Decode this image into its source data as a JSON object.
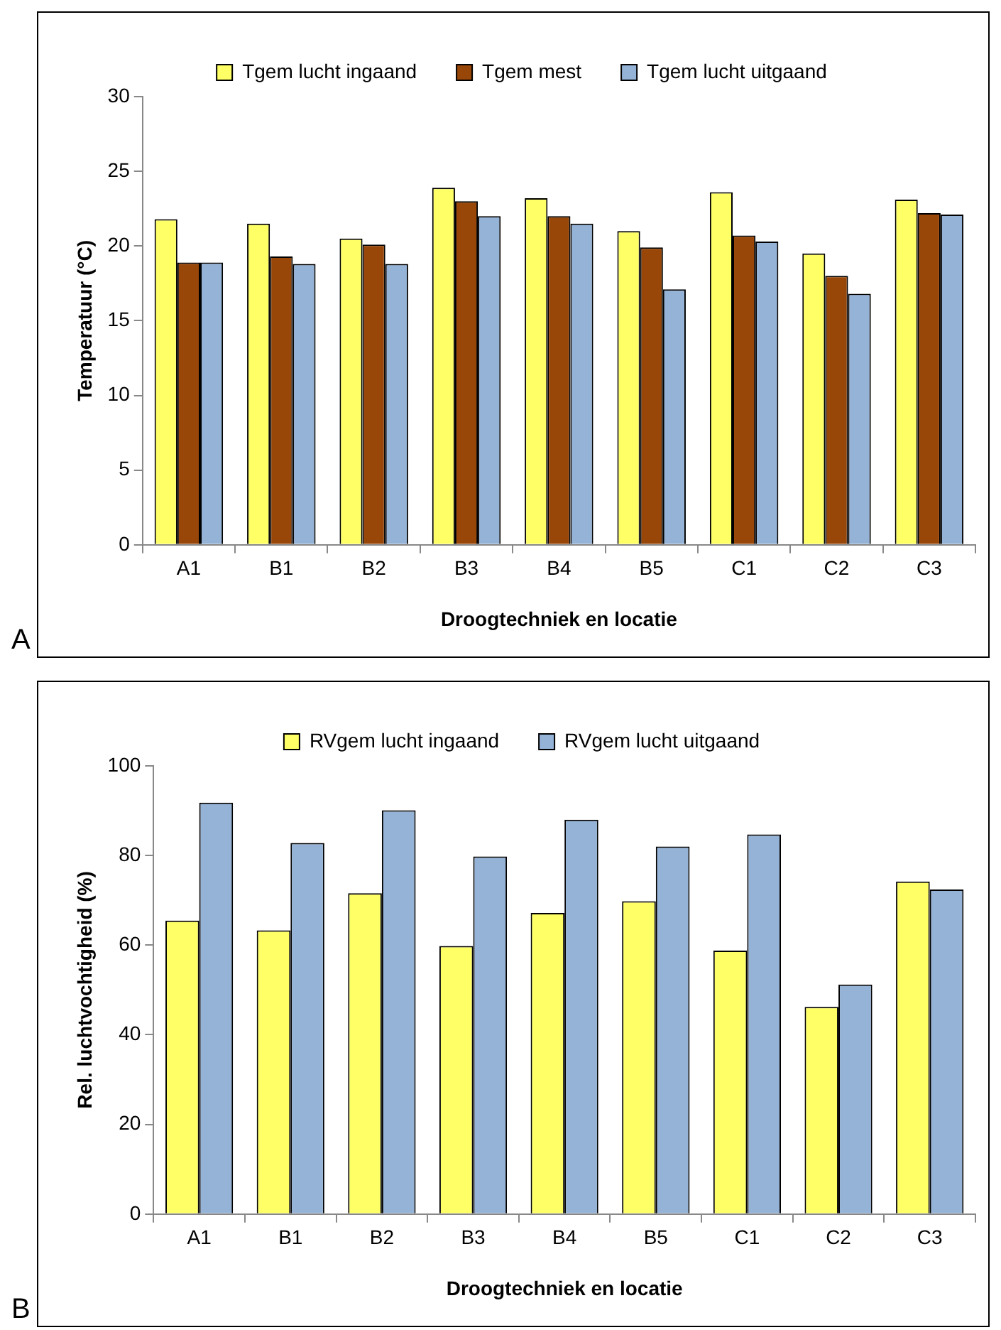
{
  "chart_data": [
    {
      "type": "bar",
      "xlabel": "Droogtechniek en locatie",
      "ylabel": "Temperatuur (°C)",
      "categories": [
        "A1",
        "B1",
        "B2",
        "B3",
        "B4",
        "B5",
        "C1",
        "C2",
        "C3"
      ],
      "series": [
        {
          "name": "Tgem lucht ingaand",
          "color": "#ffff66",
          "values": [
            21.8,
            21.5,
            20.5,
            23.9,
            23.2,
            21.0,
            23.6,
            19.5,
            23.1
          ]
        },
        {
          "name": "Tgem mest",
          "color": "#994709",
          "values": [
            18.9,
            19.3,
            20.1,
            23.0,
            22.0,
            19.9,
            20.7,
            18.0,
            22.2
          ]
        },
        {
          "name": "Tgem lucht uitgaand",
          "color": "#95b3d7",
          "values": [
            18.9,
            18.8,
            18.8,
            22.0,
            21.5,
            17.1,
            20.3,
            16.8,
            22.1
          ]
        }
      ],
      "ylim": [
        0,
        30
      ],
      "yticks": [
        0,
        5,
        10,
        15,
        20,
        25,
        30
      ],
      "grid": false,
      "legend": "top",
      "annotations": [
        "A"
      ]
    },
    {
      "type": "bar",
      "xlabel": "Droogtechniek en locatie",
      "ylabel": "Rel. luchtvochtigheid (%)",
      "categories": [
        "A1",
        "B1",
        "B2",
        "B3",
        "B4",
        "B5",
        "C1",
        "C2",
        "C3"
      ],
      "series": [
        {
          "name": "RVgem lucht ingaand",
          "color": "#ffff66",
          "values": [
            65.5,
            63.3,
            71.6,
            59.8,
            67.2,
            69.8,
            58.8,
            46.2,
            74.2
          ]
        },
        {
          "name": "RVgem lucht uitgaand",
          "color": "#95b3d7",
          "values": [
            91.8,
            82.8,
            90.1,
            79.8,
            88.0,
            82.0,
            84.7,
            51.2,
            72.4
          ]
        }
      ],
      "ylim": [
        0,
        100
      ],
      "yticks": [
        0,
        20,
        40,
        60,
        80,
        100
      ],
      "grid": false,
      "legend": "top",
      "annotations": [
        "B"
      ]
    }
  ]
}
